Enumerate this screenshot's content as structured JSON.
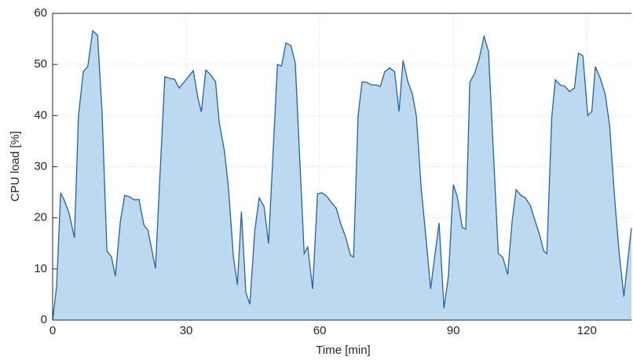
{
  "chart_data": {
    "type": "area",
    "xlabel": "Time [min]",
    "ylabel": "CPU load [%]",
    "xlim": [
      0,
      130
    ],
    "ylim": [
      0,
      60
    ],
    "xticks": [
      0,
      30,
      60,
      90,
      120
    ],
    "yticks": [
      0,
      10,
      20,
      30,
      40,
      50,
      60
    ],
    "grid": true,
    "series": [
      {
        "name": "CPU load",
        "color": "#1f64a8",
        "fill": "#bcd9f0",
        "x": [
          0,
          0.9,
          1.8,
          2.6,
          3.7,
          4.9,
          5.8,
          6.9,
          7.9,
          9.0,
          10.1,
          11.1,
          12.2,
          13.2,
          14.1,
          15.2,
          16.2,
          17.3,
          18.4,
          19.4,
          20.5,
          21.4,
          23.1,
          24.2,
          25.2,
          26.3,
          27.4,
          28.4,
          29.5,
          30.5,
          31.6,
          32.6,
          33.4,
          34.4,
          35.5,
          36.6,
          37.4,
          38.6,
          39.5,
          40.6,
          41.5,
          42.4,
          43.4,
          44.3,
          45.4,
          46.4,
          47.5,
          48.5,
          50.5,
          51.4,
          52.4,
          53.5,
          54.5,
          56.5,
          57.3,
          58.4,
          59.5,
          60.5,
          61.6,
          62.6,
          63.7,
          64.8,
          65.8,
          66.9,
          67.6,
          68.6,
          69.5,
          70.6,
          71.6,
          72.7,
          73.6,
          74.6,
          75.7,
          76.8,
          77.8,
          78.7,
          79.8,
          80.8,
          81.7,
          82.8,
          83.8,
          84.9,
          85.8,
          86.8,
          87.9,
          88.9,
          90.0,
          90.9,
          92.0,
          92.8,
          93.7,
          94.8,
          95.8,
          96.9,
          97.9,
          100.1,
          101.1,
          102.2,
          103.2,
          104.1,
          105.2,
          106.2,
          107.3,
          108.3,
          109.4,
          110.3,
          111.0,
          112.1,
          112.9,
          114.0,
          115.1,
          116.1,
          117.2,
          118.1,
          119.1,
          120.2,
          121.1,
          121.9,
          123.0,
          124.1,
          125.1,
          126.2,
          127.2,
          128.3,
          129.3,
          130.0
        ],
        "values": [
          0,
          6.6,
          24.9,
          23.5,
          20.9,
          16.1,
          39.9,
          48.6,
          49.6,
          56.6,
          55.7,
          40.7,
          13.5,
          12.4,
          8.6,
          19.2,
          24.4,
          24.1,
          23.5,
          23.6,
          18.6,
          17.6,
          10.1,
          29.9,
          47.6,
          47.3,
          47.1,
          45.4,
          46.5,
          47.6,
          48.8,
          43.6,
          40.7,
          48.9,
          48.0,
          46.6,
          38.8,
          33.0,
          25.8,
          12.4,
          6.9,
          21.2,
          5.4,
          3.1,
          17.5,
          23.9,
          22.2,
          15.0,
          50.0,
          49.7,
          54.2,
          53.7,
          50.3,
          13.0,
          14.3,
          6.1,
          24.7,
          24.9,
          24.2,
          23.0,
          21.9,
          18.6,
          16.3,
          12.7,
          12.3,
          39.9,
          46.6,
          46.5,
          46.0,
          46.0,
          45.7,
          48.6,
          49.3,
          48.6,
          40.8,
          50.8,
          46.6,
          44.2,
          39.9,
          25.6,
          16.6,
          6.1,
          12.3,
          19.0,
          2.3,
          8.6,
          26.5,
          24.1,
          18.1,
          17.8,
          46.5,
          48.3,
          51.1,
          55.5,
          52.6,
          13.0,
          12.3,
          8.9,
          19.3,
          25.5,
          24.4,
          23.9,
          22.4,
          19.6,
          16.6,
          13.5,
          13.0,
          39.6,
          47.0,
          46.0,
          45.7,
          44.7,
          45.4,
          52.2,
          51.7,
          40.0,
          40.8,
          49.6,
          47.3,
          44.2,
          38.1,
          24.2,
          13.5,
          4.6,
          12.7,
          18.0
        ]
      }
    ]
  }
}
